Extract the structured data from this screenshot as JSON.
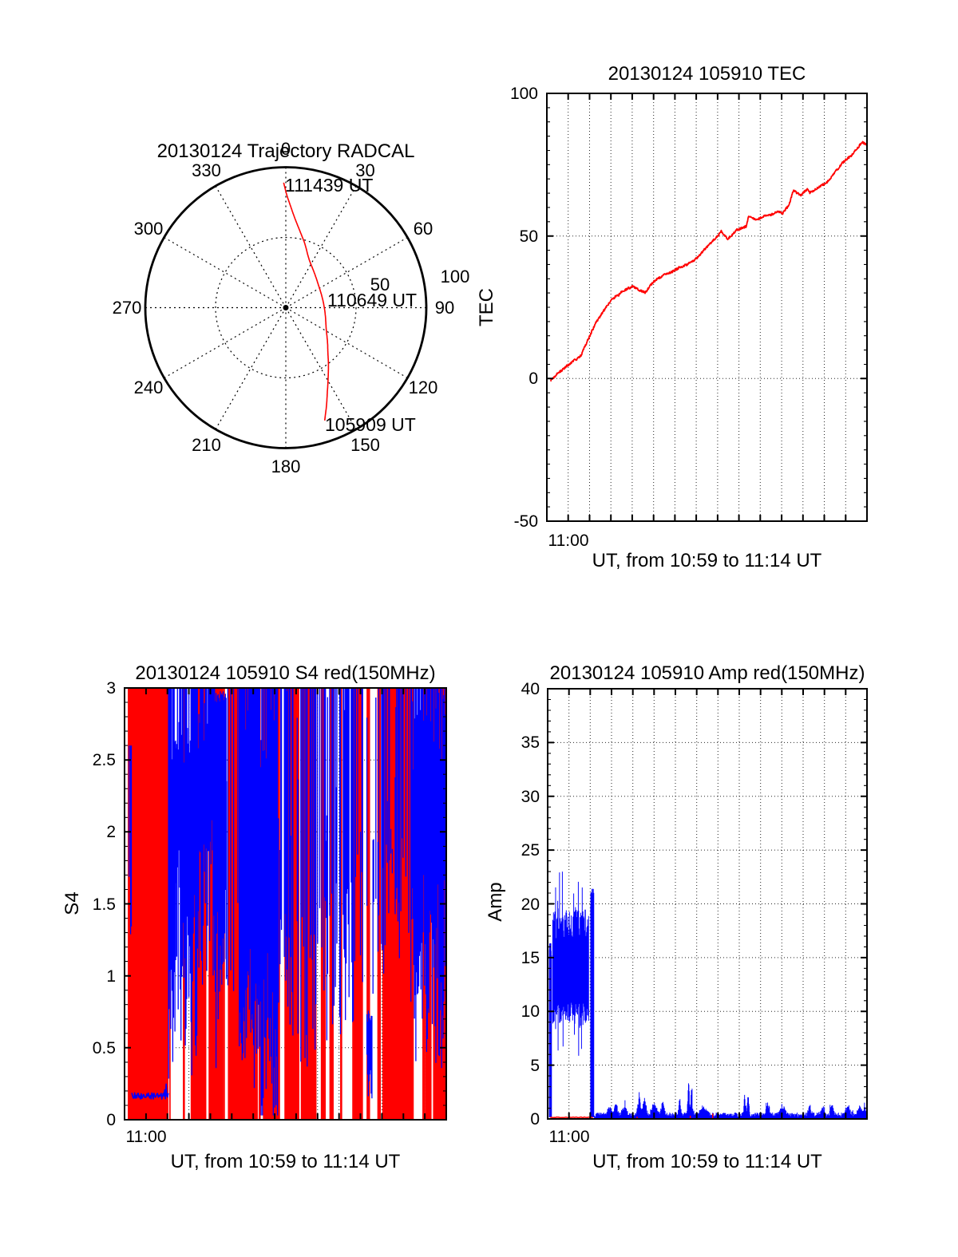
{
  "page": {
    "background": "#ffffff"
  },
  "colors": {
    "series_red": "#ff0000",
    "series_blue": "#0000ff",
    "axis": "#000000"
  },
  "chart_data": {
    "trajectory": {
      "type": "line",
      "projection": "polar",
      "title": "20130124 Trajectory RADCAL",
      "azimuth_tick_labels": [
        "0",
        "30",
        "60",
        "90",
        "120",
        "150",
        "180",
        "210",
        "240",
        "270",
        "300",
        "330"
      ],
      "radius_tick_labels": [
        "50",
        "100"
      ],
      "rlim": [
        0,
        100
      ],
      "line_color": "#ff0000",
      "annotations": [
        {
          "label": "111439 UT",
          "az": -1,
          "r": 89
        },
        {
          "label": "110649 UT",
          "az": 93,
          "r": 30
        },
        {
          "label": "105909 UT",
          "az": 161,
          "r": 85
        }
      ],
      "points_az_r": [
        [
          -1,
          89
        ],
        [
          1.3,
          77
        ],
        [
          6.7,
          62
        ],
        [
          15.3,
          49
        ],
        [
          28.5,
          36.5
        ],
        [
          53.8,
          28.5
        ],
        [
          85,
          27.1
        ],
        [
          114.3,
          31.4
        ],
        [
          133.3,
          41
        ],
        [
          144.6,
          52.4
        ],
        [
          152.8,
          65
        ],
        [
          158.6,
          78.4
        ],
        [
          161,
          85
        ]
      ]
    },
    "tec": {
      "type": "line",
      "title": "20130124 105910 TEC",
      "ylabel": "TEC",
      "xlabel": "UT, from 10:59 to 11:14 UT",
      "xtick_label": "11:00",
      "xtick_minute": 1,
      "xlim_minutes": [
        0,
        15
      ],
      "ylim": [
        -50,
        100
      ],
      "ytick_step": 50,
      "yminor_step": 5,
      "ytick_labels": [
        "100",
        "50",
        "0",
        "-50"
      ],
      "ygrid_values": [
        0,
        50
      ],
      "line_color": "#ff0000",
      "noise_amplitude": 0.7,
      "points_t_v": [
        [
          0.17,
          -0.8
        ],
        [
          0.35,
          1
        ],
        [
          1.03,
          5
        ],
        [
          1.6,
          8
        ],
        [
          2.28,
          19
        ],
        [
          3,
          27
        ],
        [
          3.6,
          30.5
        ],
        [
          4.04,
          32
        ],
        [
          4.6,
          30
        ],
        [
          5.03,
          34
        ],
        [
          5.76,
          37
        ],
        [
          6.32,
          39
        ],
        [
          6.88,
          41
        ],
        [
          7.48,
          46
        ],
        [
          7.91,
          48.7
        ],
        [
          8.17,
          51.5
        ],
        [
          8.47,
          49
        ],
        [
          8.9,
          52.4
        ],
        [
          9.33,
          53.3
        ],
        [
          9.46,
          57
        ],
        [
          9.84,
          56
        ],
        [
          10.19,
          57.5
        ],
        [
          10.62,
          58
        ],
        [
          10.83,
          59
        ],
        [
          11.04,
          58
        ],
        [
          11.35,
          61
        ],
        [
          11.56,
          66
        ],
        [
          11.9,
          64
        ],
        [
          12.21,
          66
        ],
        [
          12.33,
          65
        ],
        [
          12.63,
          66.5
        ],
        [
          13.06,
          68.3
        ],
        [
          13.49,
          72
        ],
        [
          13.84,
          75.3
        ],
        [
          14.27,
          78
        ],
        [
          14.78,
          83.2
        ],
        [
          15,
          82.4
        ]
      ]
    },
    "s4": {
      "type": "line",
      "title": "20130124 105910 S4 red(150MHz)",
      "ylabel": "S4",
      "xlabel": "UT, from 10:59 to 11:14 UT",
      "xtick_label": "11:00",
      "xtick_minute": 1,
      "xlim_minutes": [
        0,
        15
      ],
      "ylim": [
        0,
        3
      ],
      "ytick_step": 0.5,
      "yminor_step": 0.1,
      "ytick_labels": [
        "3",
        "2.5",
        "2",
        "1.5",
        "1",
        "0.5",
        "0"
      ],
      "ygrid_values": [
        0.5,
        1,
        1.5,
        2,
        2.5
      ],
      "red_series_color": "#ff0000",
      "blue_series_color": "#0000ff",
      "red_density_regions": [
        [
          0.15,
          2.05,
          0.985
        ],
        [
          2.05,
          3.4,
          0.55
        ],
        [
          3.4,
          4.7,
          0.72
        ],
        [
          4.7,
          5.5,
          0.8
        ],
        [
          5.5,
          7.1,
          0.82
        ],
        [
          7.1,
          8.7,
          0.72
        ],
        [
          8.7,
          9.7,
          0.5
        ],
        [
          9.7,
          10.8,
          0.38
        ],
        [
          10.8,
          12.1,
          0.5
        ],
        [
          12.1,
          13.4,
          0.68
        ],
        [
          13.4,
          14.3,
          0.55
        ],
        [
          14.3,
          15,
          0.65
        ]
      ],
      "blue_regions": [
        {
          "t0": 0.15,
          "t1": 0.34,
          "style": "lines",
          "lo": 1.2,
          "hi": 2.6,
          "density": 0.6
        },
        {
          "t0": 0.34,
          "t1": 2.05,
          "style": "flat",
          "v": 0.165,
          "jitter": 0.022
        },
        {
          "t0": 2.05,
          "t1": 2.4,
          "style": "hash",
          "lo": 0.8,
          "hi": 3,
          "loJitter": 0.5
        },
        {
          "t0": 2.4,
          "t1": 3.4,
          "style": "hash",
          "lo": 1.3,
          "hi": 3,
          "loJitter": 0.6
        },
        {
          "t0": 3.4,
          "t1": 4.2,
          "style": "hash",
          "lo": 1.4,
          "hi": 3,
          "loJitter": 0.6
        },
        {
          "t0": 4.2,
          "t1": 4.75,
          "style": "hash",
          "lo": 0.7,
          "hi": 2.95,
          "loJitter": 0.5
        },
        {
          "t0": 4.75,
          "t1": 5.35,
          "style": "lines",
          "lo": 0.7,
          "hi": 3,
          "density": 0.55
        },
        {
          "t0": 5.35,
          "t1": 6.3,
          "style": "hash",
          "lo": 0.5,
          "hi": 3,
          "loJitter": 0.4
        },
        {
          "t0": 6.3,
          "t1": 7.15,
          "style": "hash",
          "lo": 0.55,
          "hi": 3,
          "loJitter": 0.55
        },
        {
          "t0": 7.15,
          "t1": 9,
          "style": "lines",
          "lo": 0.35,
          "hi": 3,
          "density": 0.6
        },
        {
          "t0": 9,
          "t1": 10.7,
          "style": "lines",
          "lo": 0.55,
          "hi": 3,
          "density": 0.55
        },
        {
          "t0": 10.7,
          "t1": 11.3,
          "style": "lines",
          "lo": 0.9,
          "hi": 3,
          "density": 0.45
        },
        {
          "t0": 11.3,
          "t1": 11.55,
          "style": "hash",
          "lo": 0.45,
          "hi": 0.72,
          "loJitter": 0.08
        },
        {
          "t0": 11.55,
          "t1": 12.15,
          "style": "lines",
          "lo": 0.8,
          "hi": 3,
          "density": 0.45
        },
        {
          "t0": 12.15,
          "t1": 13.35,
          "style": "lines",
          "lo": 1.1,
          "hi": 3,
          "density": 0.5
        },
        {
          "t0": 13.35,
          "t1": 14.45,
          "style": "hash",
          "lo": 1.35,
          "hi": 3,
          "loJitter": 0.55
        },
        {
          "t0": 14.45,
          "t1": 15,
          "style": "hash",
          "lo": 0.6,
          "hi": 3,
          "loJitter": 0.65
        }
      ]
    },
    "amp": {
      "type": "line",
      "title": "20130124 105910 Amp red(150MHz)",
      "ylabel": "Amp",
      "xlabel": "UT, from 10:59 to 11:14 UT",
      "xtick_label": "11:00",
      "xtick_minute": 1,
      "xlim_minutes": [
        0,
        15
      ],
      "ylim": [
        0,
        40
      ],
      "ytick_step": 5,
      "yminor_step": 1,
      "ytick_labels": [
        "40",
        "35",
        "30",
        "25",
        "20",
        "15",
        "10",
        "5",
        "0"
      ],
      "ygrid_values": [
        5,
        10,
        15,
        20,
        25,
        30,
        35
      ],
      "blue_series_color": "#0000ff",
      "red_series_color": "#ff0000",
      "burst": {
        "t_start": 0.24,
        "t_end": 1.93,
        "lo": 9.8,
        "lo_jitter": 2.4,
        "hi": 16.6,
        "hi_jitter": 3.0,
        "peak_max": 23,
        "edge_spikes": [
          {
            "t0": 0.08,
            "t1": 0.18,
            "top": 16.5
          },
          {
            "t0": 2.02,
            "t1": 2.17,
            "top": 21.5
          }
        ]
      },
      "floor": {
        "t_start": 2.2,
        "t_end": 15,
        "base": 0.15,
        "noise": 0.45,
        "bumps": [
          [
            2.9,
            0.9,
            0.12
          ],
          [
            3.2,
            1.2,
            0.1
          ],
          [
            3.6,
            1,
            0.12
          ],
          [
            4.3,
            2.1,
            0.08
          ],
          [
            4.55,
            1.7,
            0.1
          ],
          [
            5,
            1.1,
            0.15
          ],
          [
            5.4,
            1.5,
            0.08
          ],
          [
            6.2,
            1.6,
            0.06
          ],
          [
            6.62,
            3.2,
            0.05
          ],
          [
            6.76,
            3.4,
            0.04
          ],
          [
            7.3,
            0.8,
            0.2
          ],
          [
            9.25,
            1.9,
            0.05
          ],
          [
            9.42,
            2.2,
            0.05
          ],
          [
            10.35,
            1.1,
            0.1
          ],
          [
            11.05,
            0.9,
            0.15
          ],
          [
            12.3,
            1,
            0.08
          ],
          [
            12.9,
            0.8,
            0.1
          ],
          [
            13.35,
            0.9,
            0.08
          ],
          [
            14.1,
            0.8,
            0.15
          ],
          [
            14.65,
            1,
            0.1
          ],
          [
            14.9,
            1.1,
            0.06
          ]
        ]
      },
      "red_line": {
        "t0": 0.12,
        "t1": 2.13,
        "v": 0.15
      },
      "red_blips": [
        [
          4.2,
          0.2
        ],
        [
          6.7,
          0.3
        ],
        [
          7.75,
          0.5
        ]
      ]
    }
  }
}
